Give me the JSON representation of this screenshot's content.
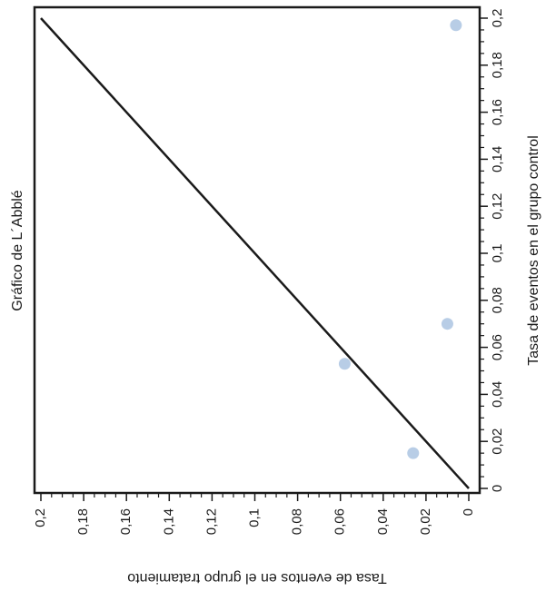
{
  "chart_data": {
    "type": "scatter",
    "title": "Gráfico de L´Abblé",
    "xlabel": "Tasa de eventos en el grupo control",
    "ylabel": "Tasa de eventos en el grupo tratamiento",
    "xlim": [
      0,
      0.2
    ],
    "ylim": [
      0,
      0.2
    ],
    "x_ticks": [
      "0",
      "0,02",
      "0,04",
      "0,06",
      "0,08",
      "0,1",
      "0,12",
      "0,14",
      "0,16",
      "0,18",
      "0,2"
    ],
    "y_ticks": [
      "0",
      "0,02",
      "0,04",
      "0,06",
      "0,08",
      "0,1",
      "0,12",
      "0,14",
      "0,16",
      "0,18",
      "0,2"
    ],
    "orientation": "rotated-90-clockwise",
    "grid": false,
    "points": [
      {
        "x": 0.015,
        "y": 0.026
      },
      {
        "x": 0.053,
        "y": 0.058
      },
      {
        "x": 0.07,
        "y": 0.01
      },
      {
        "x": 0.197,
        "y": 0.006
      }
    ],
    "reference_line": {
      "from": [
        0,
        0
      ],
      "to": [
        0.2,
        0.2
      ]
    },
    "colors": {
      "points": "#b8cde6",
      "axes": "#1a1a1a"
    }
  }
}
